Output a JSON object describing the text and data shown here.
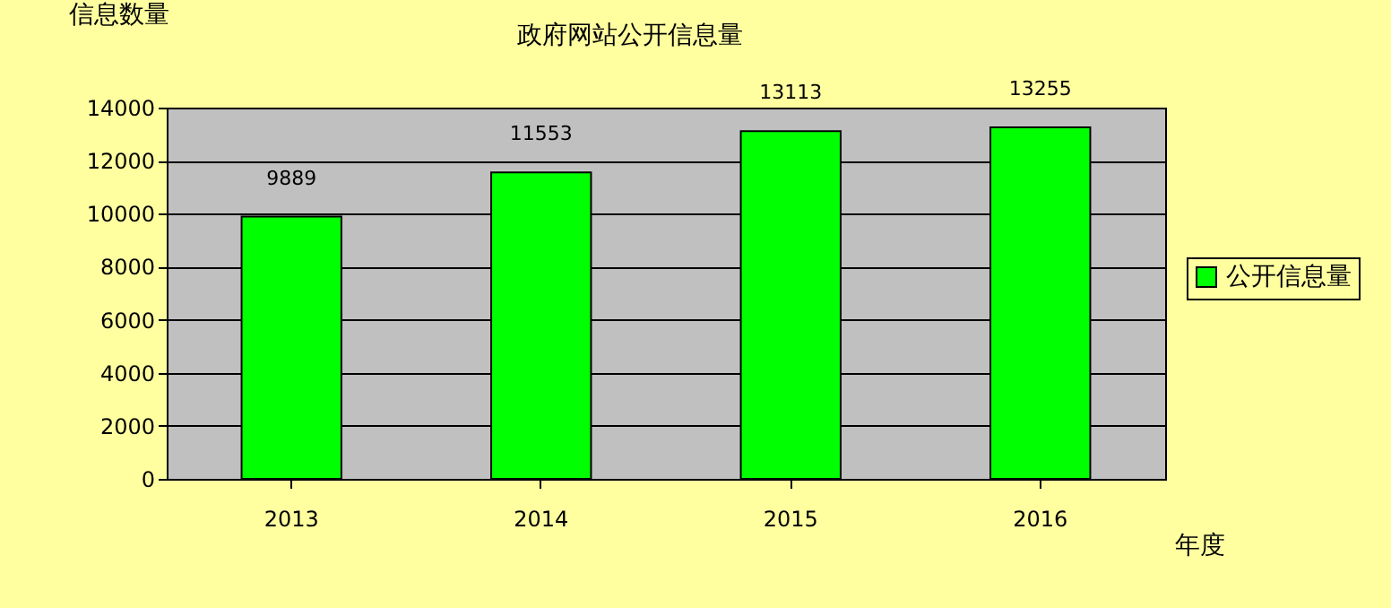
{
  "chart_data": {
    "type": "bar",
    "title": "政府网站公开信息量",
    "ylabel": "信息数量",
    "xlabel": "年度",
    "categories": [
      "2013",
      "2014",
      "2015",
      "2016"
    ],
    "series": [
      {
        "name": "公开信息量",
        "color": "#00ff00",
        "values": [
          9889,
          11553,
          13113,
          13255
        ]
      }
    ],
    "ylim": [
      0,
      14000
    ],
    "yticks": [
      0,
      2000,
      4000,
      6000,
      8000,
      10000,
      12000,
      14000
    ],
    "grid": "y",
    "legend": "right",
    "data_labels": true
  }
}
